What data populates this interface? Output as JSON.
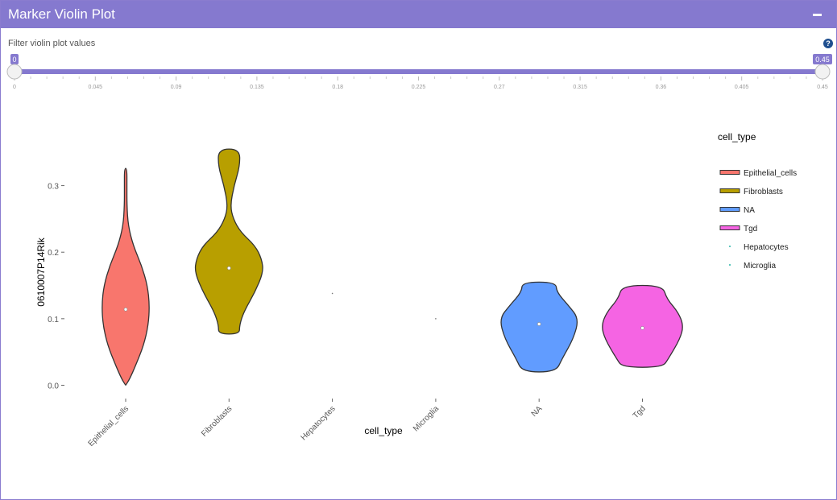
{
  "header": {
    "title": "Marker Violin Plot"
  },
  "filter": {
    "label": "Filter violin plot values",
    "min_value": "0",
    "max_value": "0.45",
    "range_fraction": [
      0,
      1
    ],
    "ticks": [
      "0",
      "0.045",
      "0.09",
      "0.135",
      "0.18",
      "0.225",
      "0.27",
      "0.315",
      "0.36",
      "0.405",
      "0.45"
    ]
  },
  "colors": {
    "header": "#8579cf",
    "slider": "#8579cf"
  },
  "chart_data": {
    "type": "violin",
    "xlabel": "cell_type",
    "ylabel": "0610007P14Rik",
    "ylim": [
      -0.02,
      0.36
    ],
    "yticks": [
      "0.0",
      "0.1",
      "0.2",
      "0.3"
    ],
    "categories": [
      "Epithelial_cells",
      "Fibroblasts",
      "Hepatocytes",
      "Microglia",
      "NA",
      "Tgd"
    ],
    "legend": {
      "title": "cell_type",
      "items": [
        "Epithelial_cells",
        "Fibroblasts",
        "NA",
        "Tgd",
        "Hepatocytes",
        "Microglia"
      ]
    },
    "series": [
      {
        "category": "Epithelial_cells",
        "color": "#f8766d",
        "median": 0.114,
        "profile": [
          [
            0.0,
            0.003
          ],
          [
            0.01,
            0.1
          ],
          [
            0.03,
            0.24
          ],
          [
            0.06,
            0.43
          ],
          [
            0.09,
            0.54
          ],
          [
            0.12,
            0.57
          ],
          [
            0.15,
            0.52
          ],
          [
            0.18,
            0.38
          ],
          [
            0.21,
            0.18
          ],
          [
            0.24,
            0.06
          ],
          [
            0.27,
            0.03
          ],
          [
            0.3,
            0.03
          ],
          [
            0.326,
            0.03
          ]
        ]
      },
      {
        "category": "Fibroblasts",
        "color": "#b89f00",
        "median": 0.176,
        "profile": [
          [
            0.077,
            0.25
          ],
          [
            0.09,
            0.25
          ],
          [
            0.11,
            0.35
          ],
          [
            0.14,
            0.62
          ],
          [
            0.17,
            0.82
          ],
          [
            0.19,
            0.78
          ],
          [
            0.21,
            0.62
          ],
          [
            0.23,
            0.28
          ],
          [
            0.25,
            0.1
          ],
          [
            0.27,
            0.03
          ],
          [
            0.3,
            0.12
          ],
          [
            0.33,
            0.26
          ],
          [
            0.355,
            0.25
          ]
        ]
      },
      {
        "category": "Hepatocytes",
        "color": "#777777",
        "point": 0.138
      },
      {
        "category": "Microglia",
        "color": "#777777",
        "point": 0.1
      },
      {
        "category": "NA",
        "color": "#619cff",
        "median": 0.092,
        "profile": [
          [
            0.02,
            0.4
          ],
          [
            0.04,
            0.55
          ],
          [
            0.07,
            0.82
          ],
          [
            0.1,
            0.95
          ],
          [
            0.12,
            0.7
          ],
          [
            0.14,
            0.42
          ],
          [
            0.155,
            0.4
          ]
        ]
      },
      {
        "category": "Tgd",
        "color": "#f564e3",
        "median": 0.086,
        "profile": [
          [
            0.027,
            0.48
          ],
          [
            0.04,
            0.62
          ],
          [
            0.07,
            0.9
          ],
          [
            0.09,
            0.98
          ],
          [
            0.11,
            0.85
          ],
          [
            0.13,
            0.58
          ],
          [
            0.15,
            0.48
          ]
        ]
      }
    ]
  }
}
